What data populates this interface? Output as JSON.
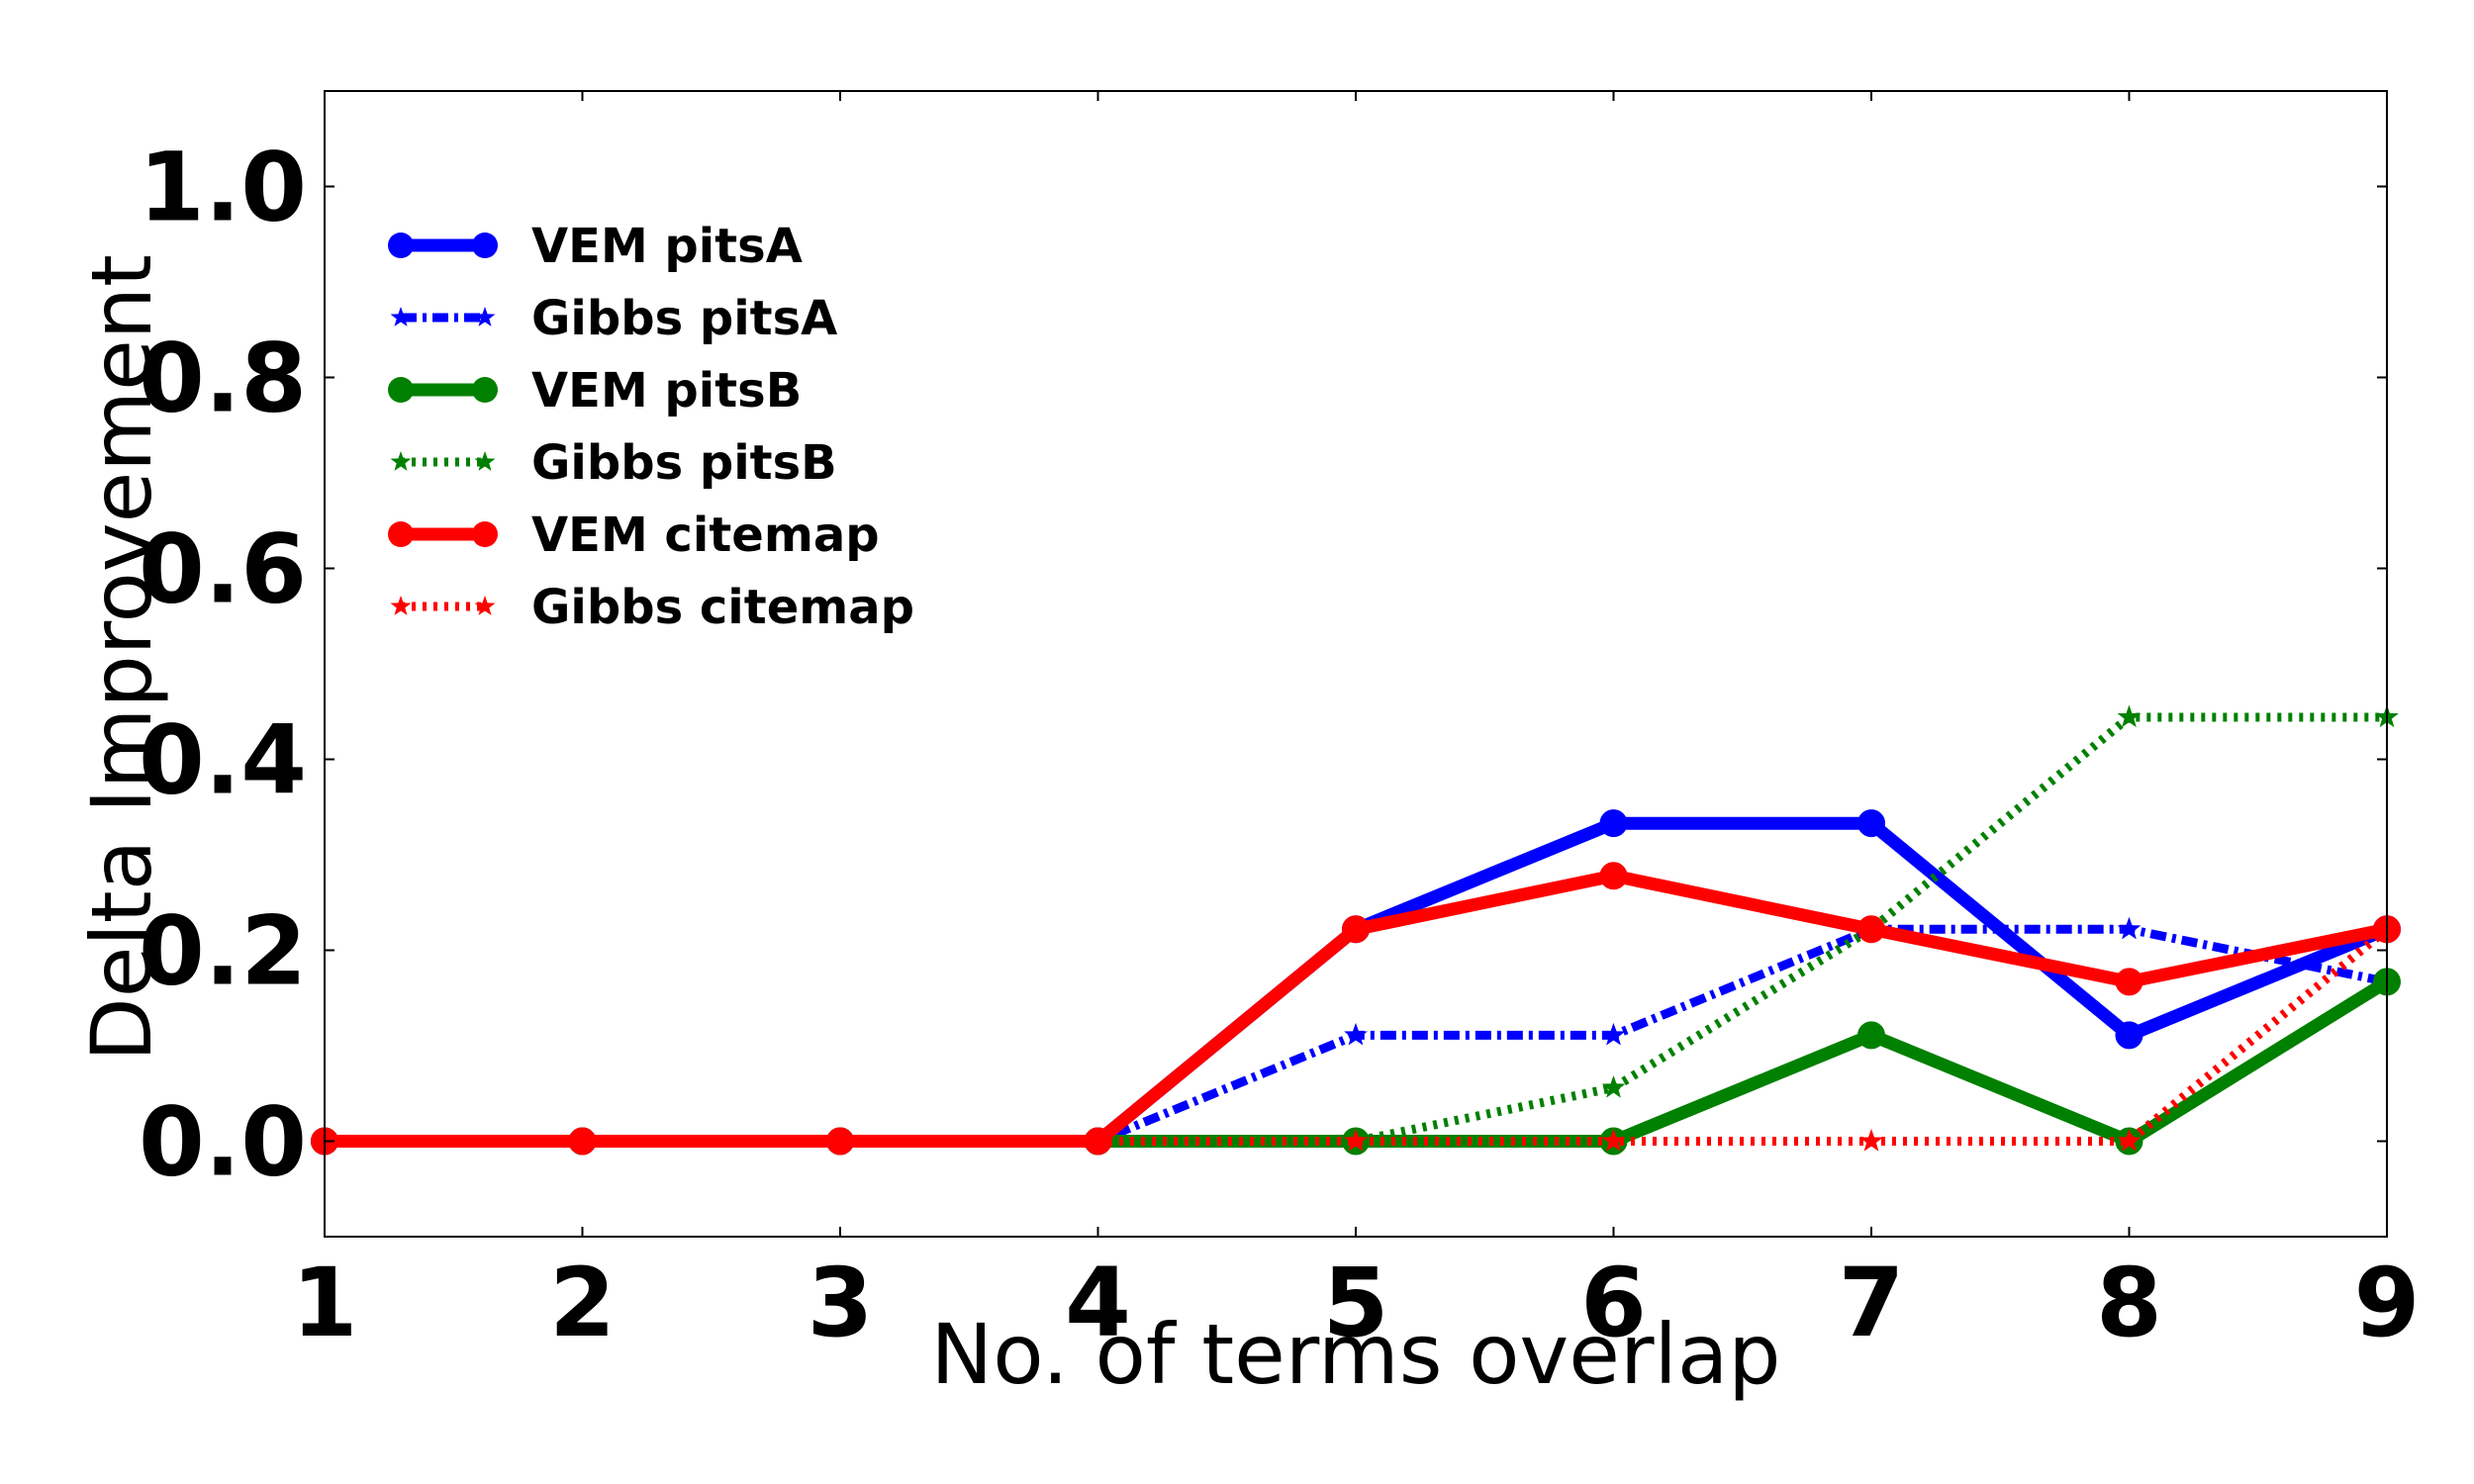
{
  "chart_data": {
    "type": "line",
    "title": "",
    "xlabel": "No. of terms overlap",
    "ylabel": "Delta Improvement",
    "x": [
      1,
      2,
      3,
      4,
      5,
      6,
      7,
      8,
      9
    ],
    "x_ticks": [
      "1",
      "2",
      "3",
      "4",
      "5",
      "6",
      "7",
      "8",
      "9"
    ],
    "xlim": [
      1,
      9
    ],
    "y_ticks": [
      "0.0",
      "0.2",
      "0.4",
      "0.6",
      "0.8",
      "1.0"
    ],
    "y_tick_values": [
      0.0,
      0.2,
      0.4,
      0.6,
      0.8,
      1.0
    ],
    "ylim": [
      -0.1,
      1.1
    ],
    "grid": false,
    "legend_position": "upper-left",
    "series": [
      {
        "name": "VEM pitsA",
        "color": "#0000ff",
        "style": "solid",
        "marker": "circle",
        "values": [
          0,
          0,
          0,
          0,
          0.222,
          0.333,
          0.333,
          0.111,
          0.222
        ]
      },
      {
        "name": "Gibbs pitsA",
        "color": "#0000ff",
        "style": "dashdot",
        "marker": "star",
        "values": [
          0,
          0,
          0,
          0,
          0.111,
          0.111,
          0.222,
          0.222,
          0.167
        ]
      },
      {
        "name": "VEM pitsB",
        "color": "#008000",
        "style": "solid",
        "marker": "circle",
        "values": [
          0,
          0,
          0,
          0,
          0,
          0,
          0.111,
          0,
          0.167
        ]
      },
      {
        "name": "Gibbs pitsB",
        "color": "#008000",
        "style": "dotted",
        "marker": "star",
        "values": [
          0,
          0,
          0,
          0,
          0,
          0.056,
          0.222,
          0.444,
          0.444
        ]
      },
      {
        "name": "VEM citemap",
        "color": "#ff0000",
        "style": "solid",
        "marker": "circle",
        "values": [
          0,
          0,
          0,
          0,
          0.222,
          0.278,
          0.222,
          0.167,
          0.222
        ]
      },
      {
        "name": "Gibbs citemap",
        "color": "#ff0000",
        "style": "dotted",
        "marker": "star",
        "values": [
          0,
          0,
          0,
          0,
          0,
          0,
          0,
          0,
          0.222
        ]
      }
    ]
  }
}
